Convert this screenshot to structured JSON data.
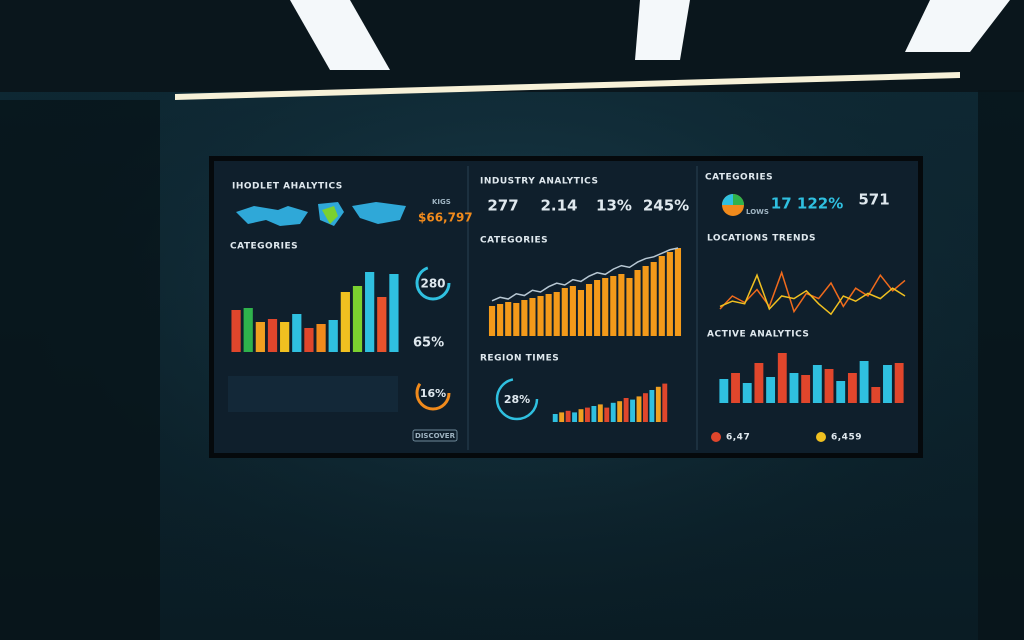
{
  "left": {
    "title": "IHODLET AHALYTICS",
    "tag": "KIGS",
    "value": "$66,797",
    "section": "CATEGORIES",
    "donut_a": "280",
    "percent": "65%",
    "donut_b": "16%",
    "button": "DISCOVER",
    "bars": [
      42,
      44,
      30,
      33,
      30,
      38,
      24,
      28,
      32,
      60,
      66,
      80,
      55,
      78
    ],
    "bar_colors": [
      "#e0462c",
      "#2fb24c",
      "#f0a020",
      "#e0462c",
      "#f0c020",
      "#2fc0e0",
      "#e0462c",
      "#f08a1c",
      "#2fc0e0",
      "#f0c020",
      "#7bd12f",
      "#2fc0e0",
      "#e8522c",
      "#2fc0e0"
    ]
  },
  "middle": {
    "title": "INDUSTRY ANALYTICS",
    "kpis": [
      "277",
      "2.14",
      "13%",
      "245%"
    ],
    "section": "CATEGORIES",
    "section2": "REGION TIMES",
    "donut": "28%",
    "bars": [
      30,
      32,
      34,
      33,
      36,
      38,
      40,
      42,
      44,
      48,
      50,
      46,
      52,
      56,
      58,
      60,
      62,
      58,
      66,
      70,
      74,
      80,
      84,
      88
    ],
    "line": [
      40,
      44,
      42,
      48,
      46,
      52,
      50,
      56,
      60,
      58,
      64,
      62,
      68,
      72,
      70,
      76,
      80,
      78,
      84,
      88,
      90,
      94,
      98,
      100
    ],
    "region_bars": [
      10,
      12,
      14,
      12,
      16,
      18,
      20,
      22,
      18,
      24,
      26,
      30,
      28,
      32,
      36,
      40,
      44,
      48
    ]
  },
  "right": {
    "title": "CATEGORIES",
    "legend": "LOWS",
    "kpi_a": "17 122%",
    "kpi_b": "571",
    "section": "LOCATIONS TRENDS",
    "section2": "ACTIVE ANALYTICS",
    "foot_a": "6,47",
    "foot_b": "6,459",
    "line": [
      10,
      20,
      15,
      25,
      12,
      38,
      8,
      22,
      18,
      30,
      12,
      26,
      20,
      36,
      24,
      32
    ],
    "line2": [
      12,
      16,
      14,
      36,
      10,
      20,
      18,
      24,
      14,
      6,
      20,
      16,
      22,
      18,
      26,
      20
    ],
    "bars": [
      24,
      30,
      20,
      40,
      26,
      50,
      30,
      28,
      38,
      34,
      22,
      30,
      42,
      16,
      38,
      40
    ]
  }
}
